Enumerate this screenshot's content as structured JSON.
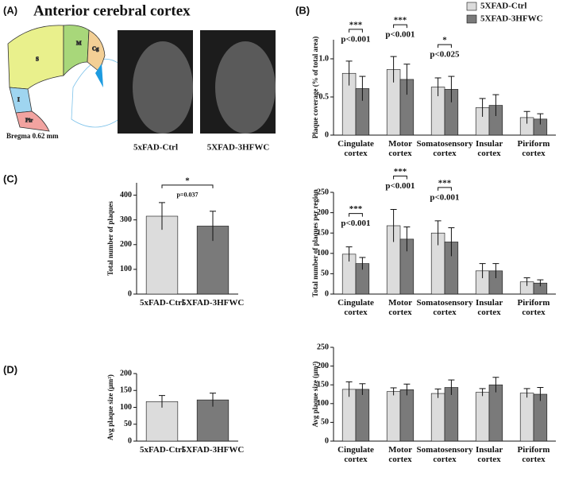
{
  "figure": {
    "title": "Anterior cerebral cortex",
    "panels": [
      "(A)",
      "(B)",
      "(C)",
      "(D)"
    ],
    "diagram": {
      "regions": [
        "M",
        "Cg",
        "S",
        "I",
        "Pir"
      ],
      "caption": "Bregma 0.62 mm"
    },
    "images": [
      "5xFAD-Ctrl",
      "5XFAD-3HFWC"
    ]
  },
  "chart_data": [
    {
      "type": "bar",
      "ylabel": "Plaque coverage (% of total area)",
      "categories": [
        "Cingulate cortex",
        "Motor cortex",
        "Somatosensory cortex",
        "Insular cortex",
        "Piriform cortex"
      ],
      "series": [
        {
          "name": "5XFAD-Ctrl",
          "color": "#dcdcdc",
          "values": [
            0.81,
            0.86,
            0.63,
            0.36,
            0.23
          ],
          "errors": [
            0.16,
            0.17,
            0.12,
            0.12,
            0.08
          ]
        },
        {
          "name": "5XFAD-3HFWC",
          "color": "#7a7a7a",
          "values": [
            0.61,
            0.73,
            0.6,
            0.39,
            0.21
          ],
          "errors": [
            0.16,
            0.2,
            0.17,
            0.14,
            0.07
          ]
        }
      ],
      "significance": [
        {
          "stars": "***",
          "text": "p<0.001"
        },
        {
          "stars": "***",
          "text": "p<0.001"
        },
        {
          "stars": "*",
          "text": "p<0.025"
        },
        null,
        null
      ],
      "ylim": [
        0,
        1.25
      ],
      "yticks": [
        0,
        0.5,
        {
          "value": 1,
          "label": "1.0"
        }
      ],
      "legend": "top-right"
    },
    {
      "type": "bar",
      "ylabel": "Total number of plaques",
      "categories": [
        "5xFAD-Ctrl",
        "5XFAD-3HFWC"
      ],
      "values": [
        315,
        275
      ],
      "errors": [
        55,
        60
      ],
      "colors": [
        "#dcdcdc",
        "#7a7a7a"
      ],
      "significance": [
        {
          "stars": "*",
          "text": "p=0.037"
        }
      ],
      "ylim": [
        0,
        450
      ],
      "yticks": [
        0,
        100,
        200,
        300,
        400
      ]
    },
    {
      "type": "bar",
      "ylabel": "Total number of plaques per region",
      "categories": [
        "Cingulate cortex",
        "Motor cortex",
        "Somatosensory cortex",
        "Insular cortex",
        "Piriform cortex"
      ],
      "series": [
        {
          "name": "5XFAD-Ctrl",
          "color": "#dcdcdc",
          "values": [
            98,
            168,
            150,
            57,
            30
          ],
          "errors": [
            18,
            40,
            30,
            18,
            10
          ]
        },
        {
          "name": "5XFAD-3HFWC",
          "color": "#7a7a7a",
          "values": [
            75,
            135,
            128,
            57,
            27
          ],
          "errors": [
            15,
            30,
            35,
            18,
            8
          ]
        }
      ],
      "significance": [
        {
          "stars": "***",
          "text": "p<0.001"
        },
        {
          "stars": "***",
          "text": "p<0.001"
        },
        {
          "stars": "***",
          "text": "p<0.001"
        },
        null,
        null
      ],
      "ylim": [
        0,
        250
      ],
      "yticks": [
        0,
        50,
        100,
        150,
        200,
        250
      ]
    },
    {
      "type": "bar",
      "ylabel": "Avg plaque size (μm²)",
      "categories": [
        "5xFAD-Ctrl",
        "5XFAD-3HFWC"
      ],
      "values": [
        117,
        122
      ],
      "errors": [
        18,
        20
      ],
      "colors": [
        "#dcdcdc",
        "#7a7a7a"
      ],
      "ylim": [
        0,
        200
      ],
      "yticks": [
        0,
        50,
        100,
        150,
        200
      ]
    },
    {
      "type": "bar",
      "ylabel": "Avg plaque size (μm²)",
      "categories": [
        "Cingulate cortex",
        "Motor cortex",
        "Somatosensory cortex",
        "Insular cortex",
        "Piriform cortex"
      ],
      "series": [
        {
          "name": "5XFAD-Ctrl",
          "color": "#dcdcdc",
          "values": [
            138,
            132,
            127,
            130,
            128
          ],
          "errors": [
            20,
            10,
            12,
            10,
            12
          ]
        },
        {
          "name": "5XFAD-3HFWC",
          "color": "#7a7a7a",
          "values": [
            138,
            137,
            143,
            150,
            125
          ],
          "errors": [
            15,
            15,
            20,
            20,
            18
          ]
        }
      ],
      "ylim": [
        0,
        250
      ],
      "yticks": [
        0,
        50,
        100,
        150,
        200,
        250
      ]
    }
  ]
}
